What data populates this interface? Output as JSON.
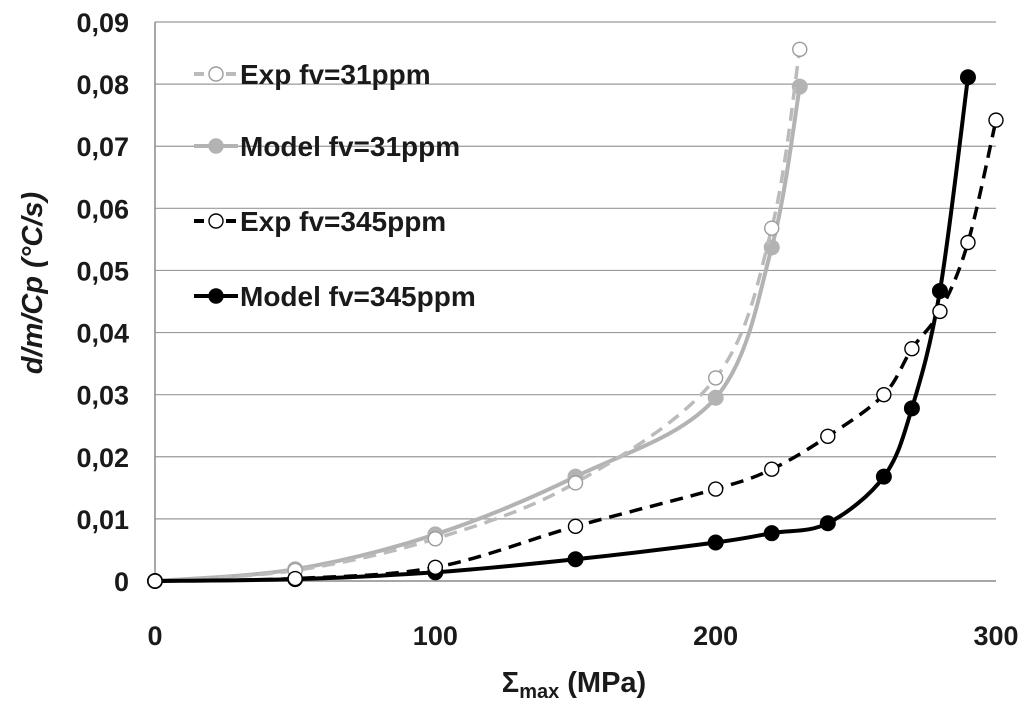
{
  "chart_data": {
    "type": "scatter",
    "title": "",
    "xlabel_main": "Σ",
    "xlabel_sub": "max",
    "xlabel_unit": " (MPa)",
    "ylabel": "d/m/Cp (°C/s)",
    "xlim": [
      0,
      300
    ],
    "ylim": [
      0,
      0.09
    ],
    "x_ticks": [
      {
        "value": 0,
        "label": "0"
      },
      {
        "value": 100,
        "label": "100"
      },
      {
        "value": 200,
        "label": "200"
      },
      {
        "value": 300,
        "label": "300"
      }
    ],
    "y_ticks": [
      {
        "value": 0,
        "label": "0"
      },
      {
        "value": 0.01,
        "label": "0,01"
      },
      {
        "value": 0.02,
        "label": "0,02"
      },
      {
        "value": 0.03,
        "label": "0,03"
      },
      {
        "value": 0.04,
        "label": "0,04"
      },
      {
        "value": 0.05,
        "label": "0,05"
      },
      {
        "value": 0.06,
        "label": "0,06"
      },
      {
        "value": 0.07,
        "label": "0,07"
      },
      {
        "value": 0.08,
        "label": "0,08"
      },
      {
        "value": 0.09,
        "label": "0,09"
      }
    ],
    "grid": "horizontal",
    "legend_position": "top-left",
    "series": [
      {
        "name": "Exp fv=31ppm",
        "color": "#bbbbbb",
        "line": "dashed",
        "marker": "open-circle",
        "x": [
          0,
          50,
          100,
          150,
          200,
          220,
          230
        ],
        "y": [
          0,
          0.0017,
          0.0068,
          0.0158,
          0.0327,
          0.0568,
          0.0856
        ]
      },
      {
        "name": "Model fv=31ppm",
        "color": "#b3b3b3",
        "line": "solid",
        "marker": "filled-circle",
        "x": [
          0,
          50,
          100,
          150,
          200,
          220,
          230
        ],
        "y": [
          0,
          0.0019,
          0.0075,
          0.0168,
          0.0295,
          0.0537,
          0.0796
        ]
      },
      {
        "name": "Exp fv=345ppm",
        "color": "#000000",
        "line": "dashed",
        "marker": "open-circle",
        "x": [
          0,
          50,
          100,
          150,
          200,
          220,
          240,
          260,
          270,
          280,
          290,
          300
        ],
        "y": [
          0,
          0.0004,
          0.0022,
          0.0088,
          0.0148,
          0.018,
          0.0233,
          0.03,
          0.0374,
          0.0434,
          0.0545,
          0.0742
        ]
      },
      {
        "name": "Model fv=345ppm",
        "color": "#000000",
        "line": "solid",
        "marker": "filled-circle",
        "x": [
          0,
          50,
          100,
          150,
          200,
          220,
          240,
          260,
          270,
          280,
          290
        ],
        "y": [
          0,
          0.0003,
          0.0014,
          0.0035,
          0.0062,
          0.0077,
          0.0093,
          0.0168,
          0.0278,
          0.0467,
          0.0811
        ]
      }
    ]
  }
}
